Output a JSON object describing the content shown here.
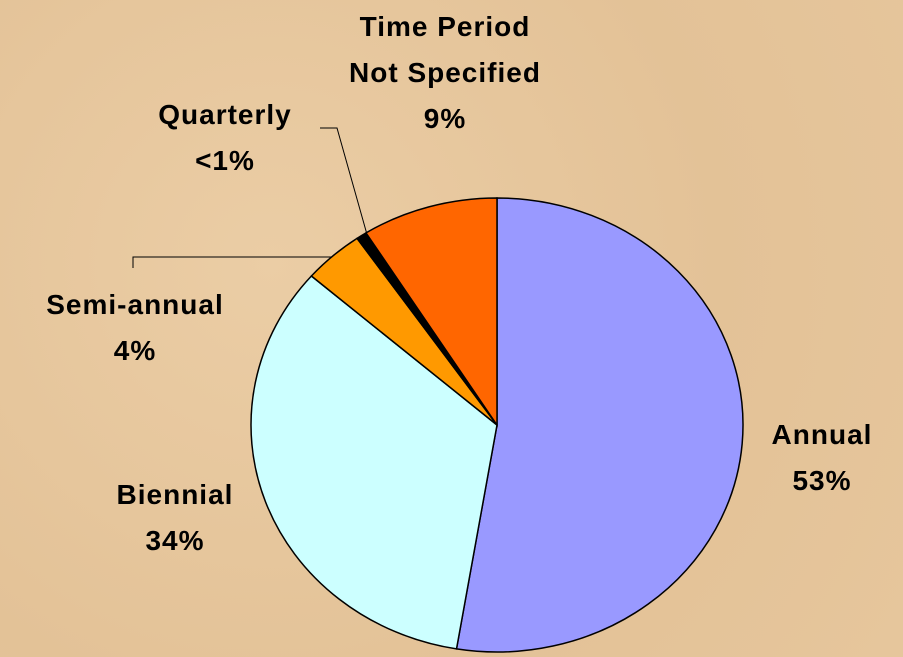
{
  "chart_data": {
    "type": "pie",
    "categories": [
      "Annual",
      "Biennial",
      "Semi-annual",
      "Quarterly",
      "Time Period Not Specified"
    ],
    "values": [
      53,
      34,
      4,
      0.7,
      9
    ],
    "value_labels": [
      "53%",
      "34%",
      "4%",
      "<1%",
      "9%"
    ],
    "colors": [
      "#9999ff",
      "#ccffff",
      "#ff9900",
      "#000000",
      "#ff6600"
    ]
  }
}
